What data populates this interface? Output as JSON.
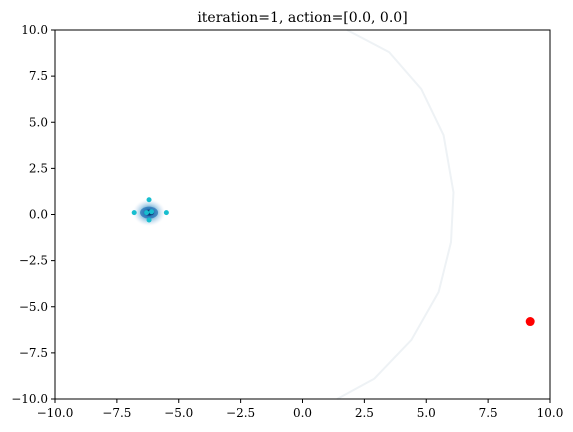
{
  "chart_data": {
    "type": "scatter",
    "title": "iteration=1, action=[0.0, 0.0]",
    "xlabel": "",
    "ylabel": "",
    "xlim": [
      -10,
      10
    ],
    "ylim": [
      -10,
      10
    ],
    "x_ticks": [
      -10,
      -7.5,
      -5,
      -2.5,
      0,
      2.5,
      5,
      7.5,
      10
    ],
    "x_tick_labels": [
      "−10.0",
      "−7.5",
      "−5.0",
      "−2.5",
      "0.0",
      "2.5",
      "5.0",
      "7.5",
      "10.0"
    ],
    "y_ticks": [
      10,
      7.5,
      5,
      2.5,
      0,
      -2.5,
      -5,
      -7.5,
      -10
    ],
    "y_tick_labels": [
      "10.0",
      "7.5",
      "5.0",
      "2.5",
      "0.0",
      "−2.5",
      "−5.0",
      "−7.5",
      "−10.0"
    ],
    "grid": false,
    "series": [
      {
        "marker": "small circle",
        "color": "#17becf",
        "points": [
          [
            -6.2,
            0.8
          ],
          [
            -6.8,
            0.1
          ],
          [
            -6.3,
            0.1
          ],
          [
            -6.1,
            0.15
          ],
          [
            -5.5,
            0.1
          ],
          [
            -6.2,
            -0.3
          ]
        ]
      },
      {
        "marker": "circle",
        "color": "#ff0000",
        "points": [
          [
            9.2,
            -5.8
          ]
        ]
      }
    ],
    "density": {
      "center": [
        -6.2,
        0.1
      ],
      "colors": [
        "#08306b",
        "#2171b5",
        "#6baed6",
        "#c6dbef"
      ]
    },
    "arc": {
      "color": "#eef2f5",
      "points": [
        [
          1.8,
          10
        ],
        [
          3.5,
          8.8
        ],
        [
          4.8,
          6.8
        ],
        [
          5.7,
          4.3
        ],
        [
          6.1,
          1.2
        ],
        [
          6.0,
          -1.5
        ],
        [
          5.5,
          -4.2
        ],
        [
          4.4,
          -6.8
        ],
        [
          2.9,
          -8.9
        ],
        [
          1.4,
          -10
        ]
      ]
    }
  }
}
